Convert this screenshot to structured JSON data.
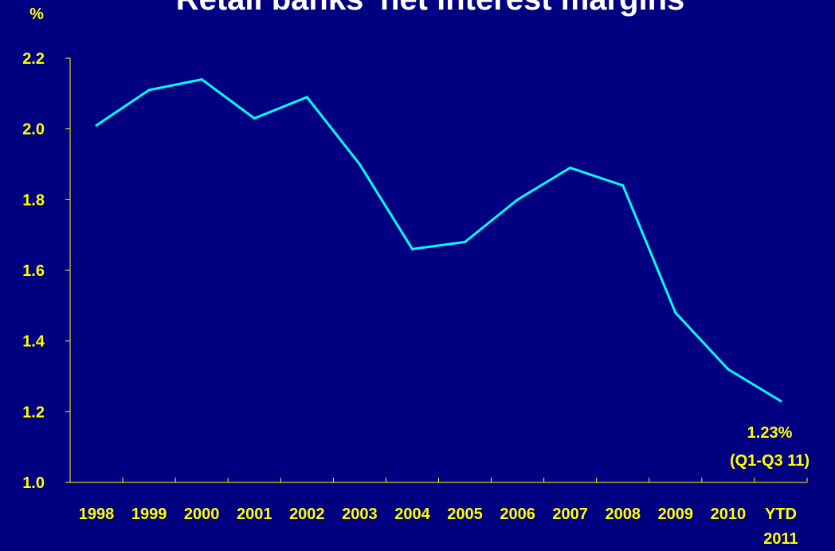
{
  "chart_data": {
    "type": "line",
    "title": "Retail banks' net interest margins",
    "ylabel": "%",
    "xlabel": "",
    "categories": [
      "1998",
      "1999",
      "2000",
      "2001",
      "2002",
      "2003",
      "2004",
      "2005",
      "2006",
      "2007",
      "2008",
      "2009",
      "2010",
      "YTD 2011"
    ],
    "series": [
      {
        "values": [
          2.01,
          2.11,
          2.14,
          2.03,
          2.09,
          1.9,
          1.66,
          1.68,
          1.8,
          1.89,
          1.84,
          1.48,
          1.32,
          1.23
        ]
      }
    ],
    "ylim": [
      1.0,
      2.2
    ],
    "yticks": [
      "1.0",
      "1.2",
      "1.4",
      "1.6",
      "1.8",
      "2.0",
      "2.2"
    ],
    "grid": false,
    "annotation": {
      "line1": "1.23%",
      "line2": "(Q1-Q3 11)",
      "category": "YTD 2011"
    },
    "colors": {
      "background": "#000080",
      "line": "#00FFFF",
      "text": "#FFFF00",
      "axis": "#FFFF00",
      "title": "#FFFFFF"
    }
  }
}
